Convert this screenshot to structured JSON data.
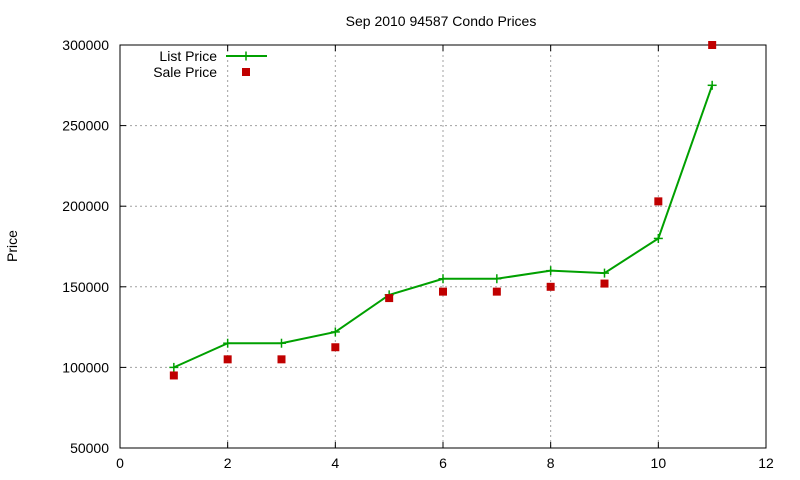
{
  "chart_data": {
    "type": "line",
    "title": "Sep 2010 94587 Condo Prices",
    "xlabel": "",
    "ylabel": "Price",
    "xlim": [
      0,
      12
    ],
    "ylim": [
      50000,
      300000
    ],
    "x_ticks": [
      0,
      2,
      4,
      6,
      8,
      10,
      12
    ],
    "y_ticks": [
      50000,
      100000,
      150000,
      200000,
      250000,
      300000
    ],
    "grid": true,
    "legend_position": "top-left",
    "series": [
      {
        "name": "List Price",
        "style": "line-with-plus-markers",
        "color": "#00a000",
        "x": [
          1,
          2,
          3,
          4,
          5,
          6,
          7,
          8,
          9,
          10,
          11
        ],
        "values": [
          100000,
          115000,
          115000,
          122000,
          145000,
          155000,
          155000,
          160000,
          158500,
          180000,
          275000
        ]
      },
      {
        "name": "Sale Price",
        "style": "square-markers",
        "color": "#c00000",
        "x": [
          1,
          2,
          3,
          4,
          5,
          6,
          7,
          8,
          9,
          10,
          11
        ],
        "values": [
          95000,
          105000,
          105000,
          112500,
          143000,
          147000,
          147000,
          150000,
          152000,
          203000,
          300000
        ]
      }
    ]
  }
}
